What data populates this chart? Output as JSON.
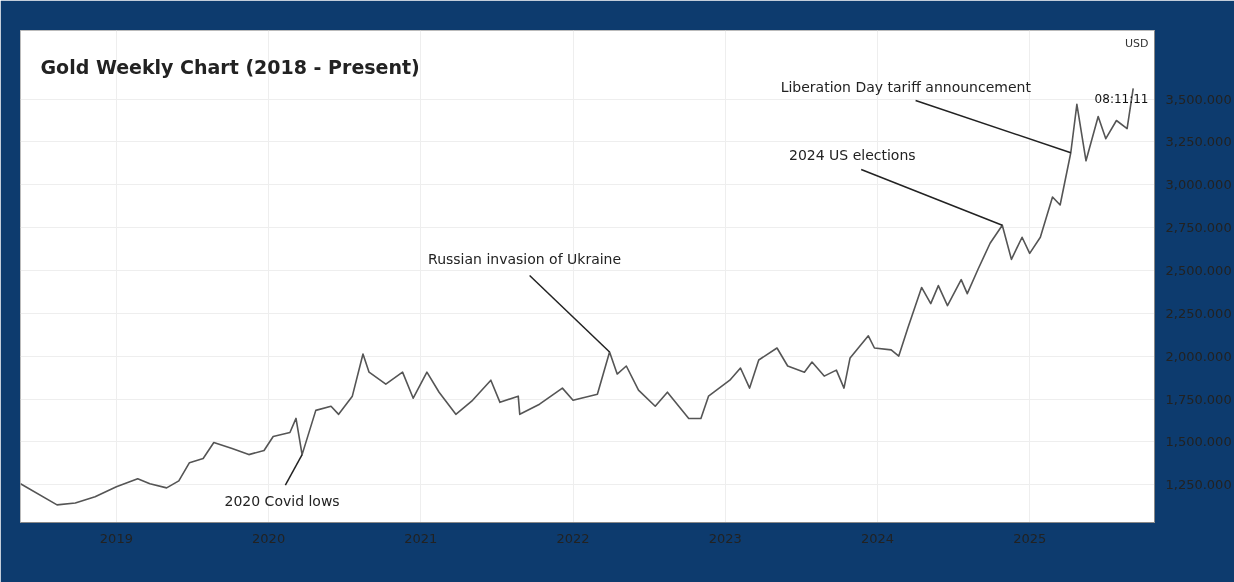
{
  "chart_data": {
    "type": "line",
    "title": "Gold Weekly Chart (2018 - Present)",
    "ylabel": "USD",
    "x": [
      2018.37,
      2018.61,
      2018.73,
      2018.86,
      2019.0,
      2019.14,
      2019.22,
      2019.33,
      2019.41,
      2019.48,
      2019.57,
      2019.64,
      2019.76,
      2019.87,
      2019.97,
      2020.03,
      2020.14,
      2020.18,
      2020.22,
      2020.31,
      2020.41,
      2020.46,
      2020.55,
      2020.62,
      2020.66,
      2020.77,
      2020.88,
      2020.95,
      2021.04,
      2021.12,
      2021.23,
      2021.34,
      2021.46,
      2021.52,
      2021.64,
      2021.65,
      2021.78,
      2021.93,
      2022.0,
      2022.16,
      2022.24,
      2022.29,
      2022.35,
      2022.43,
      2022.54,
      2022.62,
      2022.76,
      2022.84,
      2022.89,
      2023.03,
      2023.1,
      2023.16,
      2023.22,
      2023.34,
      2023.41,
      2023.52,
      2023.57,
      2023.65,
      2023.73,
      2023.78,
      2023.82,
      2023.94,
      2023.98,
      2024.09,
      2024.14,
      2024.2,
      2024.29,
      2024.35,
      2024.4,
      2024.46,
      2024.55,
      2024.59,
      2024.66,
      2024.74,
      2024.82,
      2024.88,
      2024.95,
      2025.0,
      2025.07,
      2025.15,
      2025.2,
      2025.27,
      2025.31,
      2025.37,
      2025.45,
      2025.5,
      2025.57,
      2025.64,
      2025.68
    ],
    "series": [
      {
        "color": "#555555",
        "values": [
          1256,
          1133,
          1144,
          1180,
          1238,
          1285,
          1256,
          1232,
          1273,
          1379,
          1403,
          1497,
          1461,
          1426,
          1450,
          1532,
          1555,
          1637,
          1426,
          1684,
          1708,
          1661,
          1767,
          2013,
          1907,
          1837,
          1907,
          1755,
          1907,
          1790,
          1661,
          1743,
          1860,
          1731,
          1767,
          1661,
          1720,
          1814,
          1743,
          1778,
          2025,
          1896,
          1943,
          1802,
          1708,
          1790,
          1637,
          1637,
          1767,
          1860,
          1931,
          1814,
          1978,
          2048,
          1943,
          1907,
          1966,
          1884,
          1919,
          1814,
          1990,
          2119,
          2048,
          2037,
          2001,
          2166,
          2401,
          2307,
          2412,
          2295,
          2447,
          2365,
          2506,
          2659,
          2764,
          2565,
          2694,
          2600,
          2694,
          2929,
          2882,
          3187,
          3469,
          3140,
          3398,
          3269,
          3375,
          3328,
          3563
        ]
      }
    ],
    "xlim": [
      2018.37,
      2025.82
    ],
    "xticks": [
      2019,
      2020,
      2021,
      2022,
      2023,
      2024,
      2025
    ],
    "ylim": [
      1030,
      3900
    ],
    "yticks": [
      {
        "value": 1250,
        "label": "1,250.000"
      },
      {
        "value": 1500,
        "label": "1,500.000"
      },
      {
        "value": 1750,
        "label": "1,750.000"
      },
      {
        "value": 2000,
        "label": "2,000.000"
      },
      {
        "value": 2250,
        "label": "2,250.000"
      },
      {
        "value": 2500,
        "label": "2,500.000"
      },
      {
        "value": 2750,
        "label": "2,750.000"
      },
      {
        "value": 3000,
        "label": "3,000.000"
      },
      {
        "value": 3250,
        "label": "3,250.000"
      },
      {
        "value": 3500,
        "label": "3,500.000"
      }
    ],
    "grid": true,
    "marker": "none",
    "line_style": "solid",
    "annotations": [
      {
        "text": "2020 Covid lows",
        "x": 2020.22,
        "y": 1426
      },
      {
        "text": "Russian invasion of Ukraine",
        "x": 2022.24,
        "y": 2025
      },
      {
        "text": "2024 US elections",
        "x": 2024.82,
        "y": 2764
      },
      {
        "text": "Liberation Day tariff announcement",
        "x": 2025.27,
        "y": 3187
      },
      "08:11:11"
    ]
  }
}
